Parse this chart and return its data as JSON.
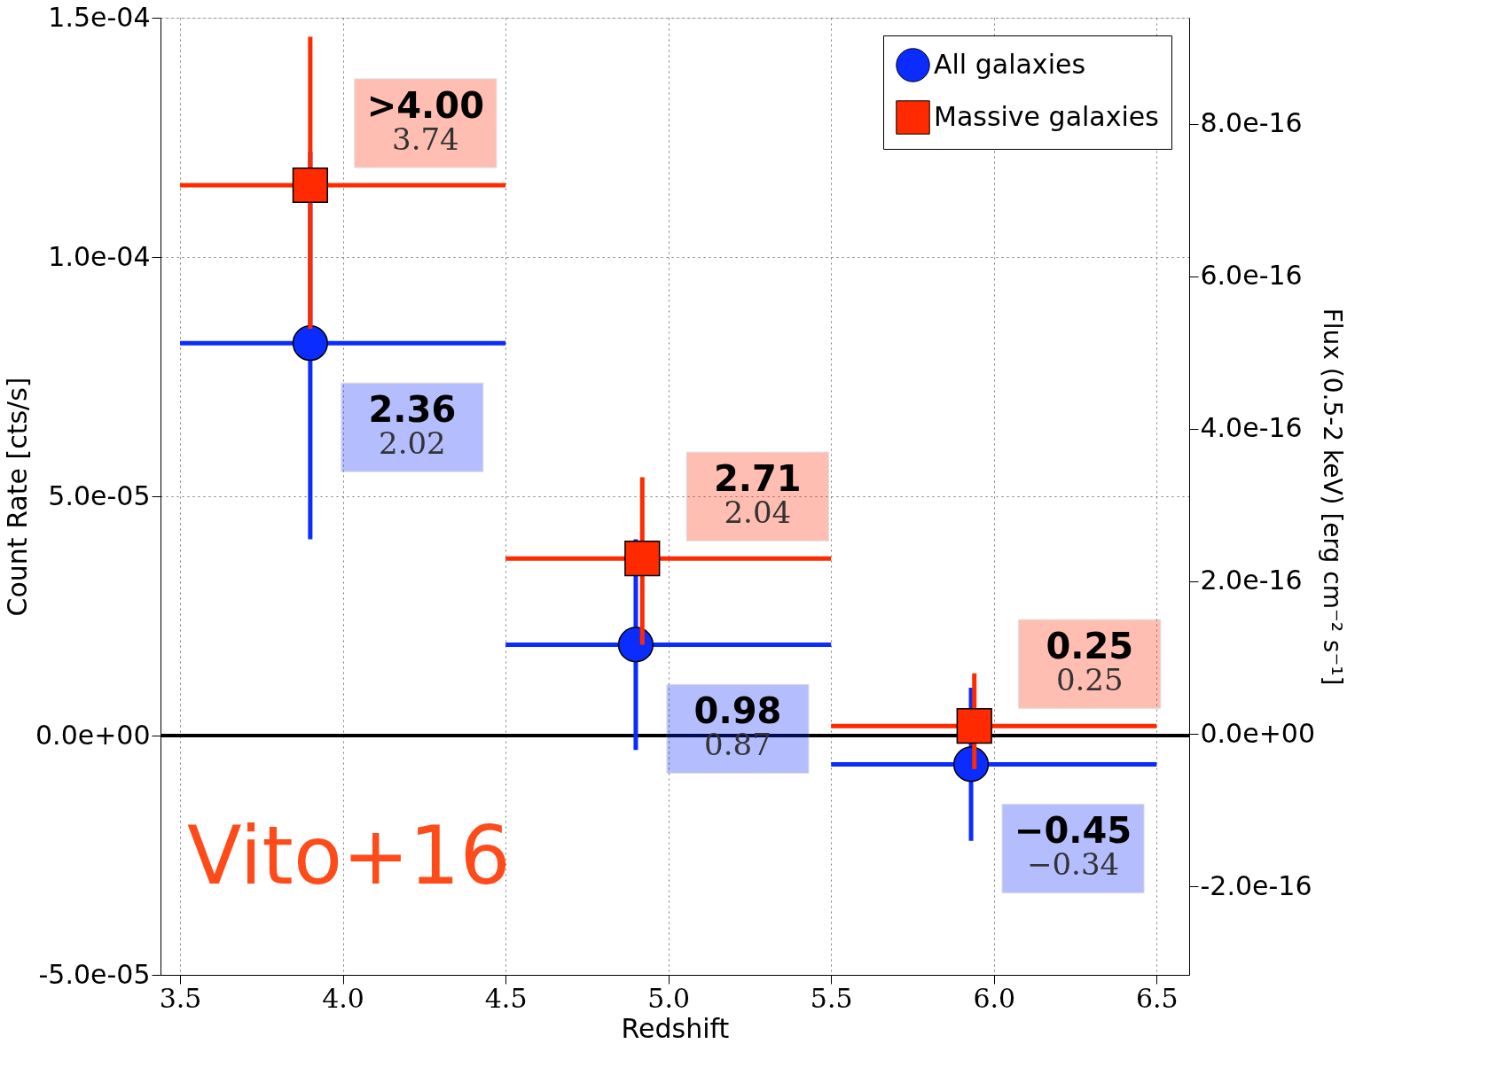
{
  "chart_data": {
    "type": "scatter",
    "xlabel": "Redshift",
    "ylabel": "Count Rate [cts/s]",
    "y2label": "Flux (0.5-2 keV) [erg cm⁻² s⁻¹]",
    "series": [
      {
        "name": "All galaxies",
        "color": "#0a2cff",
        "marker": "circle",
        "x": [
          3.9,
          4.9,
          5.93
        ],
        "values": [
          8.2e-05,
          1.9e-05,
          -6e-06
        ],
        "errors": [
          [
            4.1e-05,
            0.000122
          ],
          [
            -3e-06,
            4.1e-05
          ],
          [
            -2.2e-05,
            1e-05
          ]
        ],
        "xerrors": [
          [
            3.5,
            4.5
          ],
          [
            4.5,
            5.5
          ],
          [
            5.5,
            6.5
          ]
        ]
      },
      {
        "name": "Massive galaxies",
        "color": "#ff2a00",
        "marker": "square",
        "x": [
          3.9,
          4.92,
          5.94
        ],
        "values": [
          0.000115,
          3.7e-05,
          2e-06
        ],
        "errors": [
          [
            8.5e-05,
            0.000146
          ],
          [
            1.9e-05,
            5.4e-05
          ],
          [
            -7e-06,
            1.3e-05
          ]
        ],
        "xerrors": [
          [
            3.5,
            4.5
          ],
          [
            4.5,
            5.5
          ],
          [
            5.5,
            6.5
          ]
        ]
      }
    ],
    "xlim": [
      3.44,
      6.6
    ],
    "ylim": [
      -5e-05,
      0.00015
    ],
    "y2lim": [
      -3.16e-16,
      9.39e-16
    ],
    "xticks": [
      3.5,
      {
        "value": 4,
        "label": "4.0"
      },
      4.5,
      {
        "value": 5,
        "label": "5.0"
      },
      5.5,
      {
        "value": 6,
        "label": "6.0"
      },
      6.5
    ],
    "yticks": [
      {
        "value": -5e-05,
        "label": "-5.0e-05"
      },
      {
        "value": 0,
        "label": "0.0e+00"
      },
      {
        "value": 5e-05,
        "label": "5.0e-05"
      },
      {
        "value": 0.0001,
        "label": "1.0e-04"
      },
      {
        "value": 0.00015,
        "label": "1.5e-04"
      }
    ],
    "y2ticks": [
      {
        "value": -2e-16,
        "label": "-2.0e-16"
      },
      {
        "value": 0,
        "label": "0.0e+00"
      },
      {
        "value": 2e-16,
        "label": "2.0e-16"
      },
      {
        "value": 4e-16,
        "label": "4.0e-16"
      },
      {
        "value": 6e-16,
        "label": "6.0e-16"
      },
      {
        "value": 8e-16,
        "label": "8.0e-16"
      }
    ],
    "ref_lines": [
      {
        "axis": "y",
        "value": 0,
        "color": "#000000"
      }
    ],
    "annotations": [
      ">4.00\n3.74",
      "2.36\n2.02",
      "2.71\n2.04",
      "0.98\n0.87",
      "0.25\n0.25",
      "−0.45\n−0.34",
      "Vito+16"
    ],
    "grid": true,
    "legend": "top right"
  }
}
